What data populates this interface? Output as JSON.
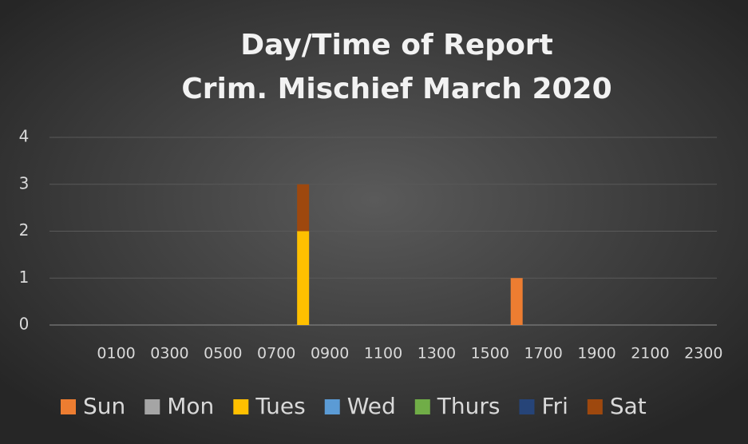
{
  "chart_data": {
    "type": "stacked_bar",
    "title": [
      "Day/Time of Report",
      "Crim. Mischief March 2020"
    ],
    "categories": [
      null,
      null,
      "0100",
      null,
      "0300",
      null,
      "0500",
      null,
      "0700",
      null,
      "0900",
      null,
      "1100",
      null,
      "1300",
      null,
      "1500",
      null,
      "1700",
      null,
      "1900",
      null,
      "2100",
      null,
      "2300"
    ],
    "series": [
      {
        "name": "Sun",
        "color": "#ed7d31",
        "values": [
          0,
          0,
          0,
          0,
          0,
          0,
          0,
          0,
          0,
          0,
          0,
          0,
          0,
          0,
          0,
          0,
          0,
          1,
          0,
          0,
          0,
          0,
          0,
          0,
          0
        ]
      },
      {
        "name": "Mon",
        "color": "#a5a5a5",
        "values": [
          0,
          0,
          0,
          0,
          0,
          0,
          0,
          0,
          0,
          0,
          0,
          0,
          0,
          0,
          0,
          0,
          0,
          0,
          0,
          0,
          0,
          0,
          0,
          0,
          0
        ]
      },
      {
        "name": "Tues",
        "color": "#ffc000",
        "values": [
          0,
          0,
          0,
          0,
          0,
          0,
          0,
          0,
          0,
          2,
          0,
          0,
          0,
          0,
          0,
          0,
          0,
          0,
          0,
          0,
          0,
          0,
          0,
          0,
          0
        ]
      },
      {
        "name": "Wed",
        "color": "#5b9bd5",
        "values": [
          0,
          0,
          0,
          0,
          0,
          0,
          0,
          0,
          0,
          0,
          0,
          0,
          0,
          0,
          0,
          0,
          0,
          0,
          0,
          0,
          0,
          0,
          0,
          0,
          0
        ]
      },
      {
        "name": "Thurs",
        "color": "#70ad47",
        "values": [
          0,
          0,
          0,
          0,
          0,
          0,
          0,
          0,
          0,
          0,
          0,
          0,
          0,
          0,
          0,
          0,
          0,
          0,
          0,
          0,
          0,
          0,
          0,
          0,
          0
        ]
      },
      {
        "name": "Fri",
        "color": "#264478",
        "values": [
          0,
          0,
          0,
          0,
          0,
          0,
          0,
          0,
          0,
          0,
          0,
          0,
          0,
          0,
          0,
          0,
          0,
          0,
          0,
          0,
          0,
          0,
          0,
          0,
          0
        ]
      },
      {
        "name": "Sat",
        "color": "#9e480e",
        "values": [
          0,
          0,
          0,
          0,
          0,
          0,
          0,
          0,
          0,
          1,
          0,
          0,
          0,
          0,
          0,
          0,
          0,
          0,
          0,
          0,
          0,
          0,
          0,
          0,
          0
        ]
      }
    ],
    "ylim": [
      0,
      4
    ],
    "yticks": [
      0,
      1,
      2,
      3,
      4
    ],
    "grid": true,
    "legend": "bottom"
  }
}
